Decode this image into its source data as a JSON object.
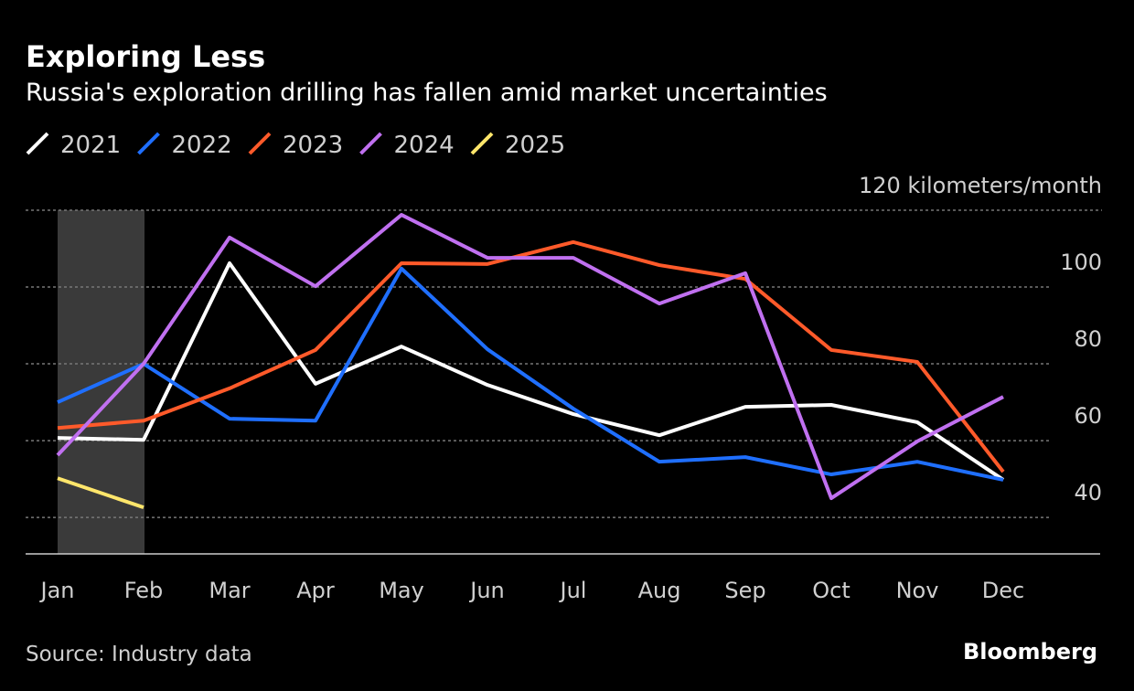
{
  "chart_data": {
    "type": "line",
    "title": "Exploring Less",
    "subtitle": "Russia's exploration drilling has fallen amid market uncertainties",
    "source": "Source: Industry data",
    "brand": "Bloomberg",
    "categories": [
      "Jan",
      "Feb",
      "Mar",
      "Apr",
      "May",
      "Jun",
      "Jul",
      "Aug",
      "Sep",
      "Oct",
      "Nov",
      "Dec"
    ],
    "series": [
      {
        "name": "2021",
        "color": "#ffffff",
        "values": [
          60.7,
          60.2,
          106.2,
          74.8,
          84.5,
          74.5,
          66.9,
          61.4,
          68.8,
          69.3,
          64.8,
          49.8
        ]
      },
      {
        "name": "2022",
        "color": "#1f6fff",
        "values": [
          70,
          80,
          65.7,
          65.2,
          104.8,
          83.8,
          68.3,
          54.5,
          55.7,
          51.2,
          54.5,
          49.8
        ]
      },
      {
        "name": "2023",
        "color": "#ff5a2a",
        "values": [
          63.3,
          65.2,
          73.6,
          83.6,
          106.2,
          106,
          111.7,
          105.7,
          102.1,
          83.6,
          80.5,
          51.9
        ]
      },
      {
        "name": "2024",
        "color": "#c070f0",
        "values": [
          56.2,
          80,
          112.9,
          100.2,
          118.8,
          107.6,
          107.6,
          95.7,
          103.6,
          45,
          59.8,
          71.4
        ]
      },
      {
        "name": "2025",
        "color": "#ffe66b",
        "values": [
          50.2,
          42.6,
          null,
          null,
          null,
          null,
          null,
          null,
          null,
          null,
          null,
          null
        ]
      }
    ],
    "ylim": [
      30.5,
      120
    ],
    "yticks": [
      40,
      60,
      80,
      100,
      {
        "value": 120,
        "label": "120 kilometers/month"
      }
    ],
    "grid": true
  }
}
